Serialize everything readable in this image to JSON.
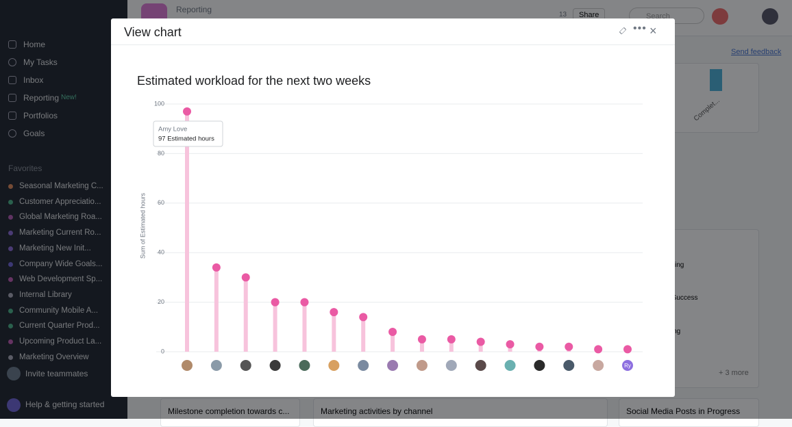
{
  "sidebar": {
    "nav": [
      "Home",
      "My Tasks",
      "Inbox",
      "Reporting",
      "Portfolios",
      "Goals"
    ],
    "new_badge": "New!",
    "favorites_title": "Favorites",
    "favorites": [
      "Seasonal Marketing C...",
      "Customer Appreciatio...",
      "Global Marketing Roa...",
      "Marketing Current Ro...",
      "Marketing New Init...",
      "Company Wide Goals...",
      "Web Development Sp...",
      "Internal Library",
      "Community Mobile A...",
      "Current Quarter Prod...",
      "Upcoming Product La...",
      "Marketing Overview"
    ],
    "invite": "Invite teammates",
    "help": "Help & getting started"
  },
  "topbar": {
    "breadcrumb": "Reporting",
    "members": "13",
    "share": "Share",
    "search": "Search"
  },
  "background": {
    "send_feedback": "Send feedback",
    "axis_label": "Complet...",
    "list": [
      "ing",
      "er Success",
      "ering"
    ],
    "more": "+ 3 more",
    "cards": [
      "Milestone completion towards c...",
      "Marketing activities by channel",
      "Social Media Posts in Progress"
    ]
  },
  "modal": {
    "title": "View chart"
  },
  "chart_data": {
    "type": "lollipop",
    "title": "Estimated workload for the next two weeks",
    "y_label": "Sum of Estimated hours",
    "categories": [
      null,
      null,
      null,
      null,
      null,
      null,
      null,
      null,
      null,
      null,
      null,
      null,
      null,
      null,
      null,
      "Ry"
    ],
    "values": [
      97,
      34,
      30,
      20,
      20,
      16,
      14,
      8,
      5,
      5,
      4,
      3,
      2,
      2,
      1,
      1
    ],
    "color": "#ea5aa4",
    "stem_color": "#f7c3dc",
    "ylim": [
      0,
      100
    ],
    "yticks": [
      0,
      20,
      40,
      60,
      80,
      100
    ],
    "grid": true,
    "tooltip": {
      "name": "Amy Love",
      "label": "97 Estimated hours"
    }
  }
}
